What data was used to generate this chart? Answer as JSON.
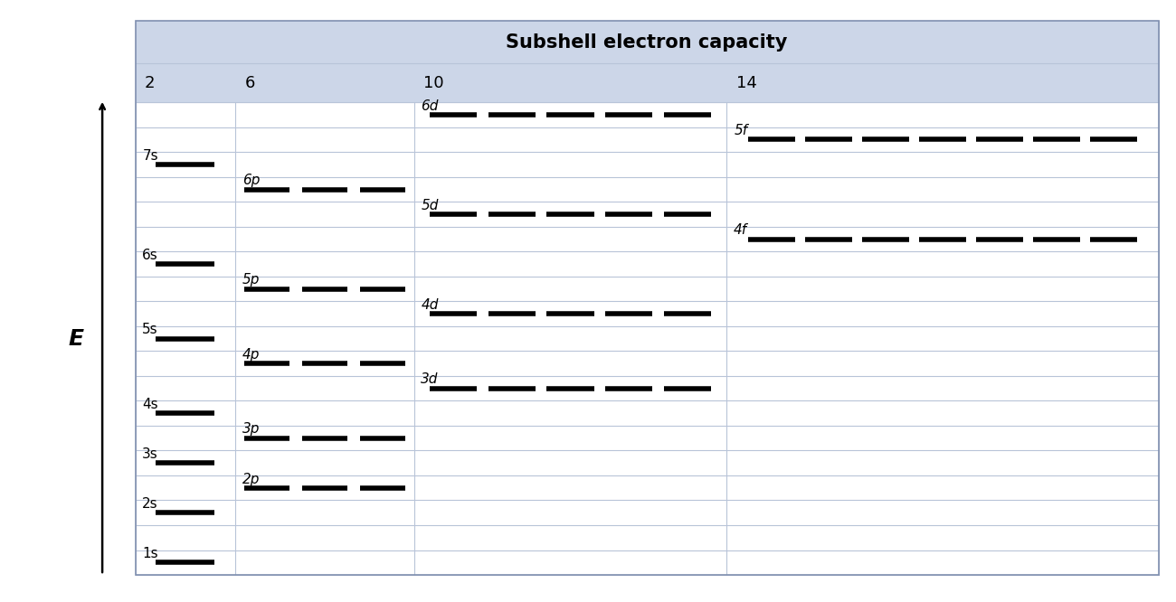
{
  "title": "Subshell electron capacity",
  "header_bg": "#ccd6e8",
  "grid_line_color": "#b8c4d8",
  "col_labels": [
    "2",
    "6",
    "10",
    "14"
  ],
  "n_rows": 19,
  "orbitals": [
    {
      "label": "1s",
      "row": 0,
      "col": 0,
      "type": "s"
    },
    {
      "label": "2s",
      "row": 2,
      "col": 0,
      "type": "s"
    },
    {
      "label": "2p",
      "row": 3,
      "col": 1,
      "type": "p"
    },
    {
      "label": "3s",
      "row": 4,
      "col": 0,
      "type": "s"
    },
    {
      "label": "3p",
      "row": 5,
      "col": 1,
      "type": "p"
    },
    {
      "label": "4s",
      "row": 6,
      "col": 0,
      "type": "s"
    },
    {
      "label": "3d",
      "row": 7,
      "col": 2,
      "type": "d"
    },
    {
      "label": "4p",
      "row": 8,
      "col": 1,
      "type": "p"
    },
    {
      "label": "5s",
      "row": 9,
      "col": 0,
      "type": "s"
    },
    {
      "label": "4d",
      "row": 10,
      "col": 2,
      "type": "d"
    },
    {
      "label": "5p",
      "row": 11,
      "col": 1,
      "type": "p"
    },
    {
      "label": "6s",
      "row": 12,
      "col": 0,
      "type": "s"
    },
    {
      "label": "4f",
      "row": 13,
      "col": 3,
      "type": "f"
    },
    {
      "label": "5d",
      "row": 14,
      "col": 2,
      "type": "d"
    },
    {
      "label": "6p",
      "row": 15,
      "col": 1,
      "type": "p"
    },
    {
      "label": "7s",
      "row": 16,
      "col": 0,
      "type": "s"
    },
    {
      "label": "5f",
      "row": 17,
      "col": 3,
      "type": "f"
    },
    {
      "label": "6d",
      "row": 18,
      "col": 2,
      "type": "d"
    }
  ]
}
